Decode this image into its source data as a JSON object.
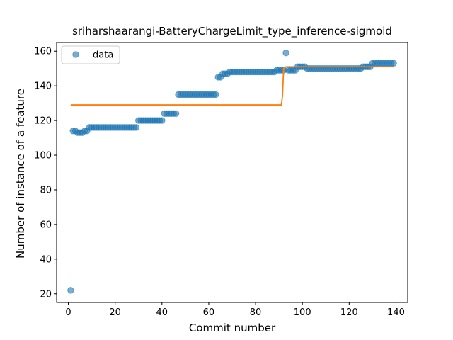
{
  "chart_data": {
    "type": "scatter",
    "title": "sriharshaarangi-BatteryChargeLimit_type_inference-sigmoid",
    "xlabel": "Commit number",
    "ylabel": "Number of instance of a feature",
    "xlim": [
      -5,
      145
    ],
    "ylim": [
      15,
      165
    ],
    "xticks": [
      0,
      20,
      40,
      60,
      80,
      100,
      120,
      140
    ],
    "yticks": [
      20,
      40,
      60,
      80,
      100,
      120,
      140,
      160
    ],
    "grid": false,
    "legend": {
      "placement": "top-left",
      "entries": [
        "data"
      ]
    },
    "colors": {
      "data": "#1f77b4",
      "fit": "#ff7f0e"
    },
    "series": [
      {
        "name": "data",
        "kind": "scatter",
        "points": [
          [
            1,
            22
          ],
          [
            2,
            114
          ],
          [
            3,
            114
          ],
          [
            4,
            113
          ],
          [
            5,
            113
          ],
          [
            6,
            113
          ],
          [
            7,
            114
          ],
          [
            8,
            114
          ],
          [
            9,
            116
          ],
          [
            10,
            116
          ],
          [
            11,
            116
          ],
          [
            12,
            116
          ],
          [
            13,
            116
          ],
          [
            14,
            116
          ],
          [
            15,
            116
          ],
          [
            16,
            116
          ],
          [
            17,
            116
          ],
          [
            18,
            116
          ],
          [
            19,
            116
          ],
          [
            20,
            116
          ],
          [
            21,
            116
          ],
          [
            22,
            116
          ],
          [
            23,
            116
          ],
          [
            24,
            116
          ],
          [
            25,
            116
          ],
          [
            26,
            116
          ],
          [
            27,
            116
          ],
          [
            28,
            116
          ],
          [
            29,
            116
          ],
          [
            30,
            120
          ],
          [
            31,
            120
          ],
          [
            32,
            120
          ],
          [
            33,
            120
          ],
          [
            34,
            120
          ],
          [
            35,
            120
          ],
          [
            36,
            120
          ],
          [
            37,
            120
          ],
          [
            38,
            120
          ],
          [
            39,
            120
          ],
          [
            40,
            120
          ],
          [
            41,
            124
          ],
          [
            42,
            124
          ],
          [
            43,
            124
          ],
          [
            44,
            124
          ],
          [
            45,
            124
          ],
          [
            46,
            124
          ],
          [
            47,
            135
          ],
          [
            48,
            135
          ],
          [
            49,
            135
          ],
          [
            50,
            135
          ],
          [
            51,
            135
          ],
          [
            52,
            135
          ],
          [
            53,
            135
          ],
          [
            54,
            135
          ],
          [
            55,
            135
          ],
          [
            56,
            135
          ],
          [
            57,
            135
          ],
          [
            58,
            135
          ],
          [
            59,
            135
          ],
          [
            60,
            135
          ],
          [
            61,
            135
          ],
          [
            62,
            135
          ],
          [
            63,
            135
          ],
          [
            64,
            145
          ],
          [
            65,
            145
          ],
          [
            66,
            147
          ],
          [
            67,
            147
          ],
          [
            68,
            147
          ],
          [
            69,
            148
          ],
          [
            70,
            148
          ],
          [
            71,
            148
          ],
          [
            72,
            148
          ],
          [
            73,
            148
          ],
          [
            74,
            148
          ],
          [
            75,
            148
          ],
          [
            76,
            148
          ],
          [
            77,
            148
          ],
          [
            78,
            148
          ],
          [
            79,
            148
          ],
          [
            80,
            148
          ],
          [
            81,
            148
          ],
          [
            82,
            148
          ],
          [
            83,
            148
          ],
          [
            84,
            148
          ],
          [
            85,
            148
          ],
          [
            86,
            148
          ],
          [
            87,
            148
          ],
          [
            88,
            148
          ],
          [
            89,
            149
          ],
          [
            90,
            149
          ],
          [
            91,
            149
          ],
          [
            92,
            149
          ],
          [
            93,
            159
          ],
          [
            94,
            149
          ],
          [
            95,
            149
          ],
          [
            96,
            149
          ],
          [
            97,
            149
          ],
          [
            98,
            151
          ],
          [
            99,
            151
          ],
          [
            100,
            151
          ],
          [
            101,
            151
          ],
          [
            102,
            150
          ],
          [
            103,
            150
          ],
          [
            104,
            150
          ],
          [
            105,
            150
          ],
          [
            106,
            150
          ],
          [
            107,
            150
          ],
          [
            108,
            150
          ],
          [
            109,
            150
          ],
          [
            110,
            150
          ],
          [
            111,
            150
          ],
          [
            112,
            150
          ],
          [
            113,
            150
          ],
          [
            114,
            150
          ],
          [
            115,
            150
          ],
          [
            116,
            150
          ],
          [
            117,
            150
          ],
          [
            118,
            150
          ],
          [
            119,
            150
          ],
          [
            120,
            150
          ],
          [
            121,
            150
          ],
          [
            122,
            150
          ],
          [
            123,
            150
          ],
          [
            124,
            150
          ],
          [
            125,
            150
          ],
          [
            126,
            151
          ],
          [
            127,
            151
          ],
          [
            128,
            151
          ],
          [
            129,
            151
          ],
          [
            130,
            153
          ],
          [
            131,
            153
          ],
          [
            132,
            153
          ],
          [
            133,
            153
          ],
          [
            134,
            153
          ],
          [
            135,
            153
          ],
          [
            136,
            153
          ],
          [
            137,
            153
          ],
          [
            138,
            153
          ],
          [
            139,
            153
          ]
        ]
      },
      {
        "kind": "line",
        "points": [
          [
            1,
            129
          ],
          [
            91,
            129
          ],
          [
            91.5,
            134
          ],
          [
            92,
            150
          ],
          [
            93,
            151
          ],
          [
            139,
            151
          ]
        ]
      }
    ]
  }
}
